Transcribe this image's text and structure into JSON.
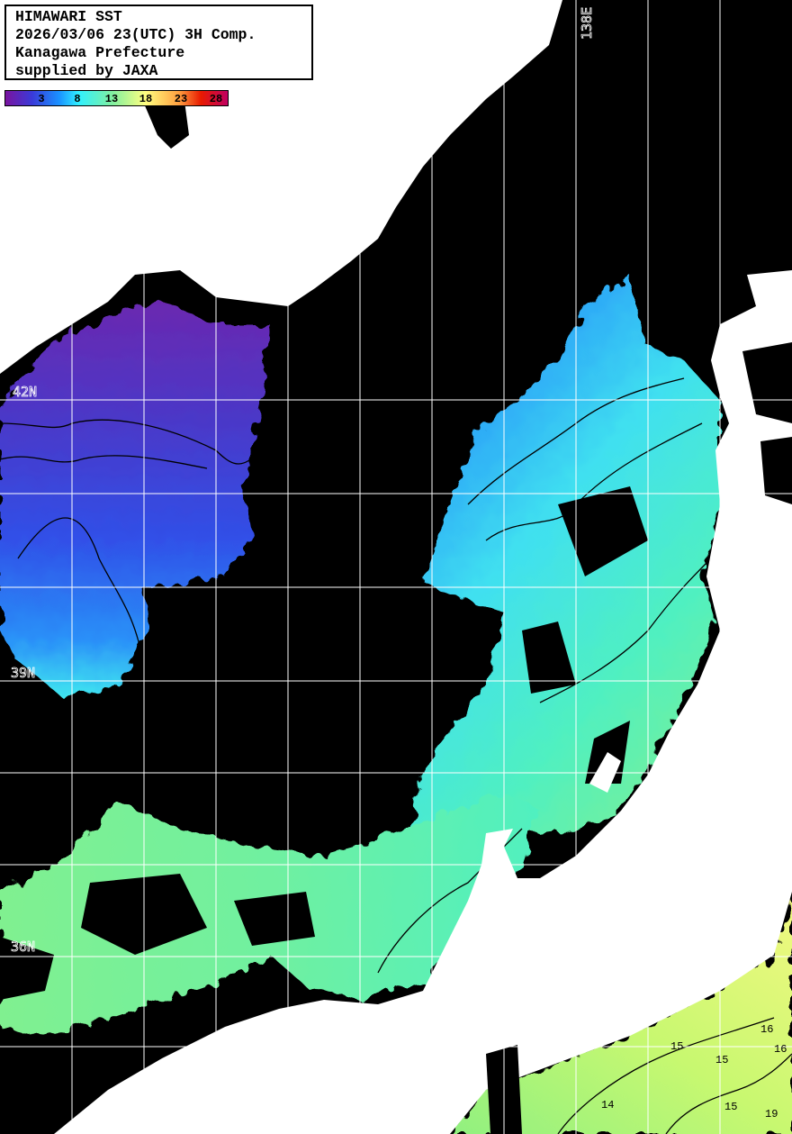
{
  "title_box": {
    "lines": [
      "HIMAWARI SST",
      "2026/03/06 23(UTC) 3H Comp.",
      "Kanagawa Prefecture",
      "supplied by JAXA"
    ]
  },
  "colorbar": {
    "unit_note": "",
    "ticks": [
      "3",
      "8",
      "13",
      "18",
      "23",
      "28"
    ],
    "range": [
      0,
      31
    ],
    "colors": [
      "#7a14a0",
      "#3a3ad8",
      "#1a90ff",
      "#30f0ff",
      "#80f0a0",
      "#ffff80",
      "#ffa040",
      "#e81a00",
      "#c00060"
    ]
  },
  "grid": {
    "lat_labels": [
      "42N",
      "39N",
      "36N"
    ],
    "lon_labels": [
      "138E"
    ]
  },
  "contour_labels": [
    "15",
    "15",
    "16",
    "16",
    "14",
    "15",
    "19"
  ],
  "colors": {
    "land": "#ffffff",
    "no_data": "#000000",
    "grid": "#ffffff",
    "contour": "#000000"
  }
}
